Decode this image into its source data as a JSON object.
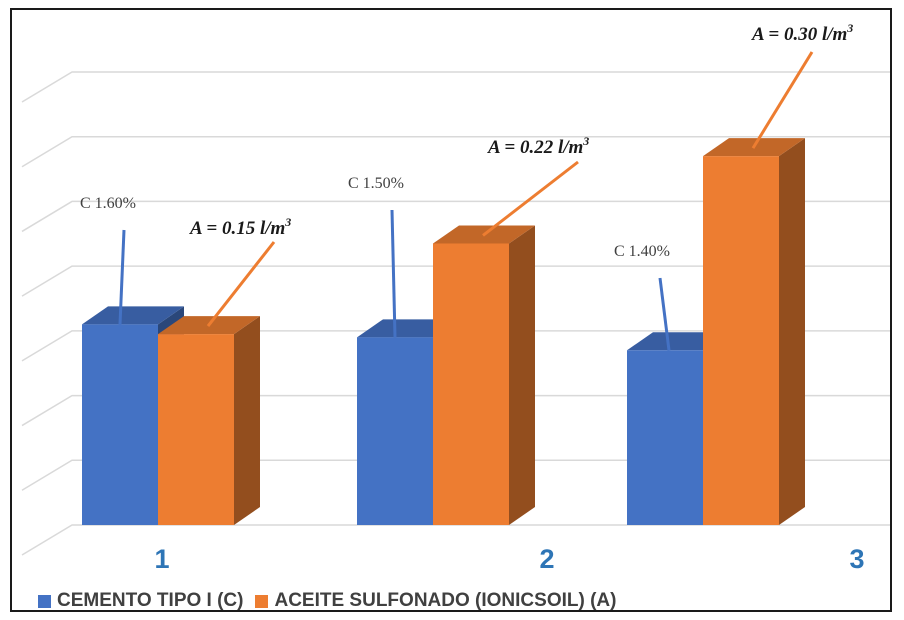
{
  "chart_data": {
    "type": "bar",
    "style": "3d-clustered-column",
    "categories": [
      "1",
      "2",
      "3"
    ],
    "series": [
      {
        "name": "CEMENTO TIPO I (C)",
        "color": "#4472c4",
        "values": [
          3.1,
          2.9,
          2.7
        ],
        "labels": [
          "C 1.60%",
          "C 1.50%",
          "C 1.40%"
        ]
      },
      {
        "name": "ACEITE SULFONADO (IONICSOIL) (A)",
        "color": "#ed7d31",
        "values": [
          2.95,
          4.35,
          5.7
        ],
        "labels": [
          {
            "prefix": "A = 0.15 l/m",
            "sup": "3"
          },
          {
            "prefix": "A = 0.22 l/m",
            "sup": "3"
          },
          {
            "prefix": "A = 0.30 l/m",
            "sup": "3"
          }
        ]
      }
    ],
    "ylim": [
      0,
      7
    ],
    "gridlines": true,
    "y_axis_labels_shown": false,
    "legend_position": "bottom-left",
    "title": "",
    "xlabel": "",
    "ylabel": ""
  }
}
